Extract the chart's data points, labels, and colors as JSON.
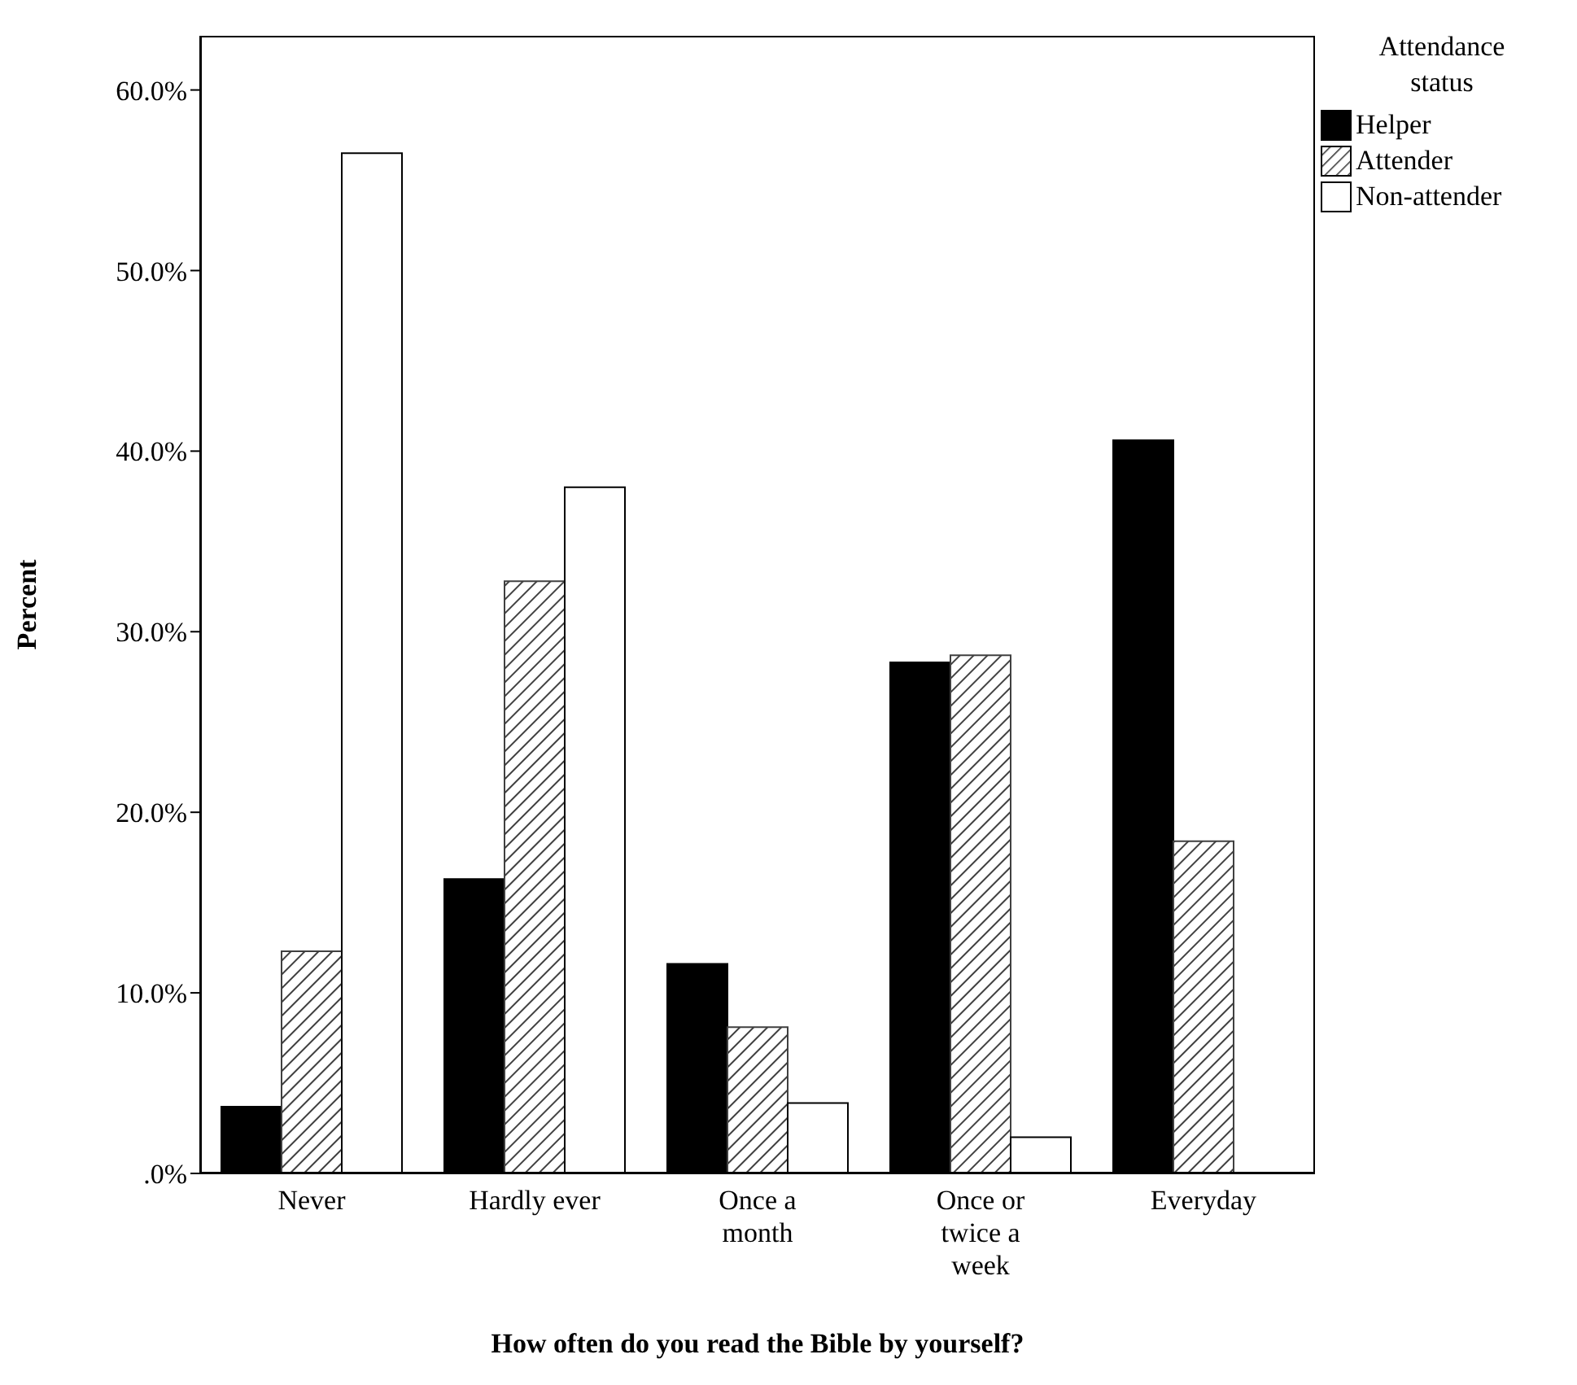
{
  "chart_data": {
    "type": "bar",
    "xlabel": "How often do you read the Bible by yourself?",
    "ylabel": "Percent",
    "legend_title": "Attendance status",
    "legend": "top right",
    "categories": [
      "Never",
      "Hardly ever",
      "Once a month",
      "Once or twice a week",
      "Everyday"
    ],
    "series": [
      {
        "name": "Helper",
        "color": "#000000",
        "values": [
          3.7,
          16.3,
          11.6,
          28.3,
          40.6
        ]
      },
      {
        "name": "Attender",
        "color": "#404040",
        "values": [
          12.3,
          32.8,
          8.1,
          28.7,
          18.4
        ]
      },
      {
        "name": "Non-attender",
        "color": "#ffffff",
        "values": [
          56.5,
          38.0,
          3.9,
          2.0,
          0
        ]
      }
    ],
    "ylim": [
      0,
      63
    ],
    "yticks": [
      {
        "value": 0,
        "label": ".0%"
      },
      {
        "value": 10,
        "label": "10.0%"
      },
      {
        "value": 20,
        "label": "20.0%"
      },
      {
        "value": 30,
        "label": "30.0%"
      },
      {
        "value": 40,
        "label": "40.0%"
      },
      {
        "value": 50,
        "label": "50.0%"
      },
      {
        "value": 60,
        "label": "60.0%"
      }
    ],
    "grid": false
  }
}
